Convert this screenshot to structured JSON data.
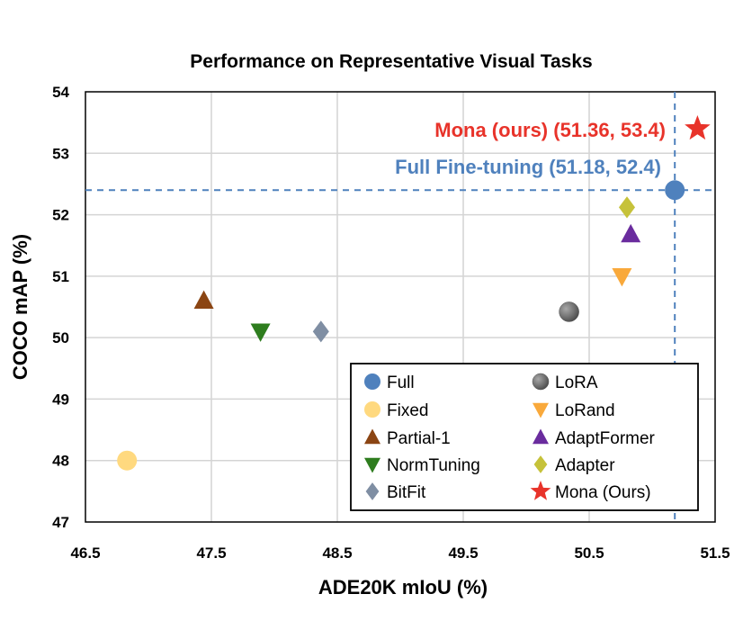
{
  "chart_data": {
    "type": "scatter",
    "title": "Performance on Representative Visual Tasks",
    "xlabel": "ADE20K mIoU (%)",
    "ylabel": "COCO mAP (%)",
    "xlim": [
      46.5,
      51.5
    ],
    "ylim": [
      47,
      54
    ],
    "xticks": [
      "46.5",
      "47.5",
      "48.5",
      "49.5",
      "50.5",
      "51.5"
    ],
    "yticks": [
      "47",
      "48",
      "49",
      "50",
      "51",
      "52",
      "53",
      "54"
    ],
    "grid": true,
    "legend_position": "bottom-right",
    "series": [
      {
        "name": "Full",
        "marker": "circle",
        "color": "#4f81bd",
        "x": 51.18,
        "y": 52.4
      },
      {
        "name": "Fixed",
        "marker": "circle",
        "color": "#ffd97f",
        "x": 46.83,
        "y": 48.0
      },
      {
        "name": "Partial-1",
        "marker": "triangle-up",
        "color": "#8b4513",
        "x": 47.44,
        "y": 50.6
      },
      {
        "name": "NormTuning",
        "marker": "triangle-down",
        "color": "#2e7d1e",
        "x": 47.89,
        "y": 50.1
      },
      {
        "name": "BitFit",
        "marker": "diamond",
        "color": "#7f8ea3",
        "x": 48.37,
        "y": 50.1
      },
      {
        "name": "LoRA",
        "marker": "circle-textured",
        "color": "#6e6e6e",
        "x": 50.34,
        "y": 50.42
      },
      {
        "name": "LoRand",
        "marker": "triangle-down",
        "color": "#f9a93b",
        "x": 50.76,
        "y": 51.0
      },
      {
        "name": "AdaptFormer",
        "marker": "triangle-up",
        "color": "#6a2c9e",
        "x": 50.83,
        "y": 51.68
      },
      {
        "name": "Adapter",
        "marker": "diamond",
        "color": "#c6c23a",
        "x": 50.8,
        "y": 52.12
      },
      {
        "name": "Mona (Ours)",
        "marker": "star",
        "color": "#e8332a",
        "x": 51.36,
        "y": 53.4
      }
    ],
    "annotations": [
      {
        "text": "Mona (ours) (51.36, 53.4)",
        "color": "#e8332a"
      },
      {
        "text": "Full Fine-tuning (51.18, 52.4)",
        "color": "#4f81bd"
      }
    ],
    "reference_lines": {
      "x": 51.18,
      "y": 52.4,
      "color": "#4f81bd",
      "style": "dashed"
    }
  }
}
